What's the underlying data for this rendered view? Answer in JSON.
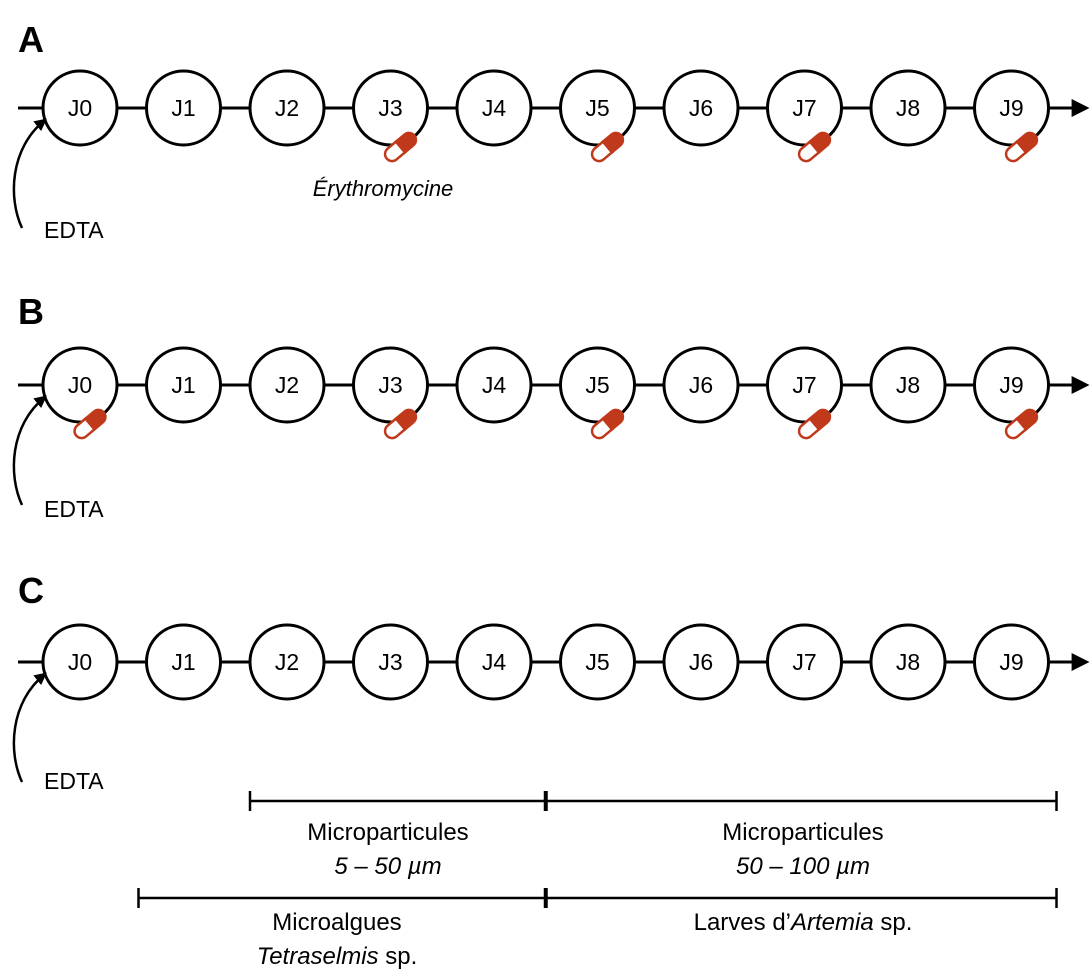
{
  "panels": [
    {
      "letter": "A",
      "edta": "EDTA",
      "pill_days": [
        3,
        5,
        7,
        9
      ],
      "pill_note": "Érythromycine"
    },
    {
      "letter": "B",
      "edta": "EDTA",
      "pill_days": [
        0,
        3,
        5,
        7,
        9
      ]
    },
    {
      "letter": "C",
      "edta": "EDTA",
      "pill_days": []
    }
  ],
  "days": [
    "J0",
    "J1",
    "J2",
    "J3",
    "J4",
    "J5",
    "J6",
    "J7",
    "J8",
    "J9"
  ],
  "feeding": {
    "micro_small": {
      "label": "Microparticules",
      "size": "5 – 50 µm",
      "start_day": 2,
      "end_day": 4
    },
    "micro_large": {
      "label": "Microparticules",
      "size": "50 – 100 µm",
      "start_day": 5,
      "end_day": 9
    },
    "microalgae": {
      "label": "Microalgues",
      "species": "Tetraselmis",
      "species_suffix": " sp.",
      "start_day": 1,
      "end_day": 4
    },
    "artemia": {
      "label_prefix": "Larves d’",
      "species": "Artemia",
      "species_suffix": " sp.",
      "start_day": 5,
      "end_day": 9
    }
  },
  "colors": {
    "pill_dark": "#c0391a",
    "pill_light": "#ffffff",
    "stroke": "#000000"
  }
}
